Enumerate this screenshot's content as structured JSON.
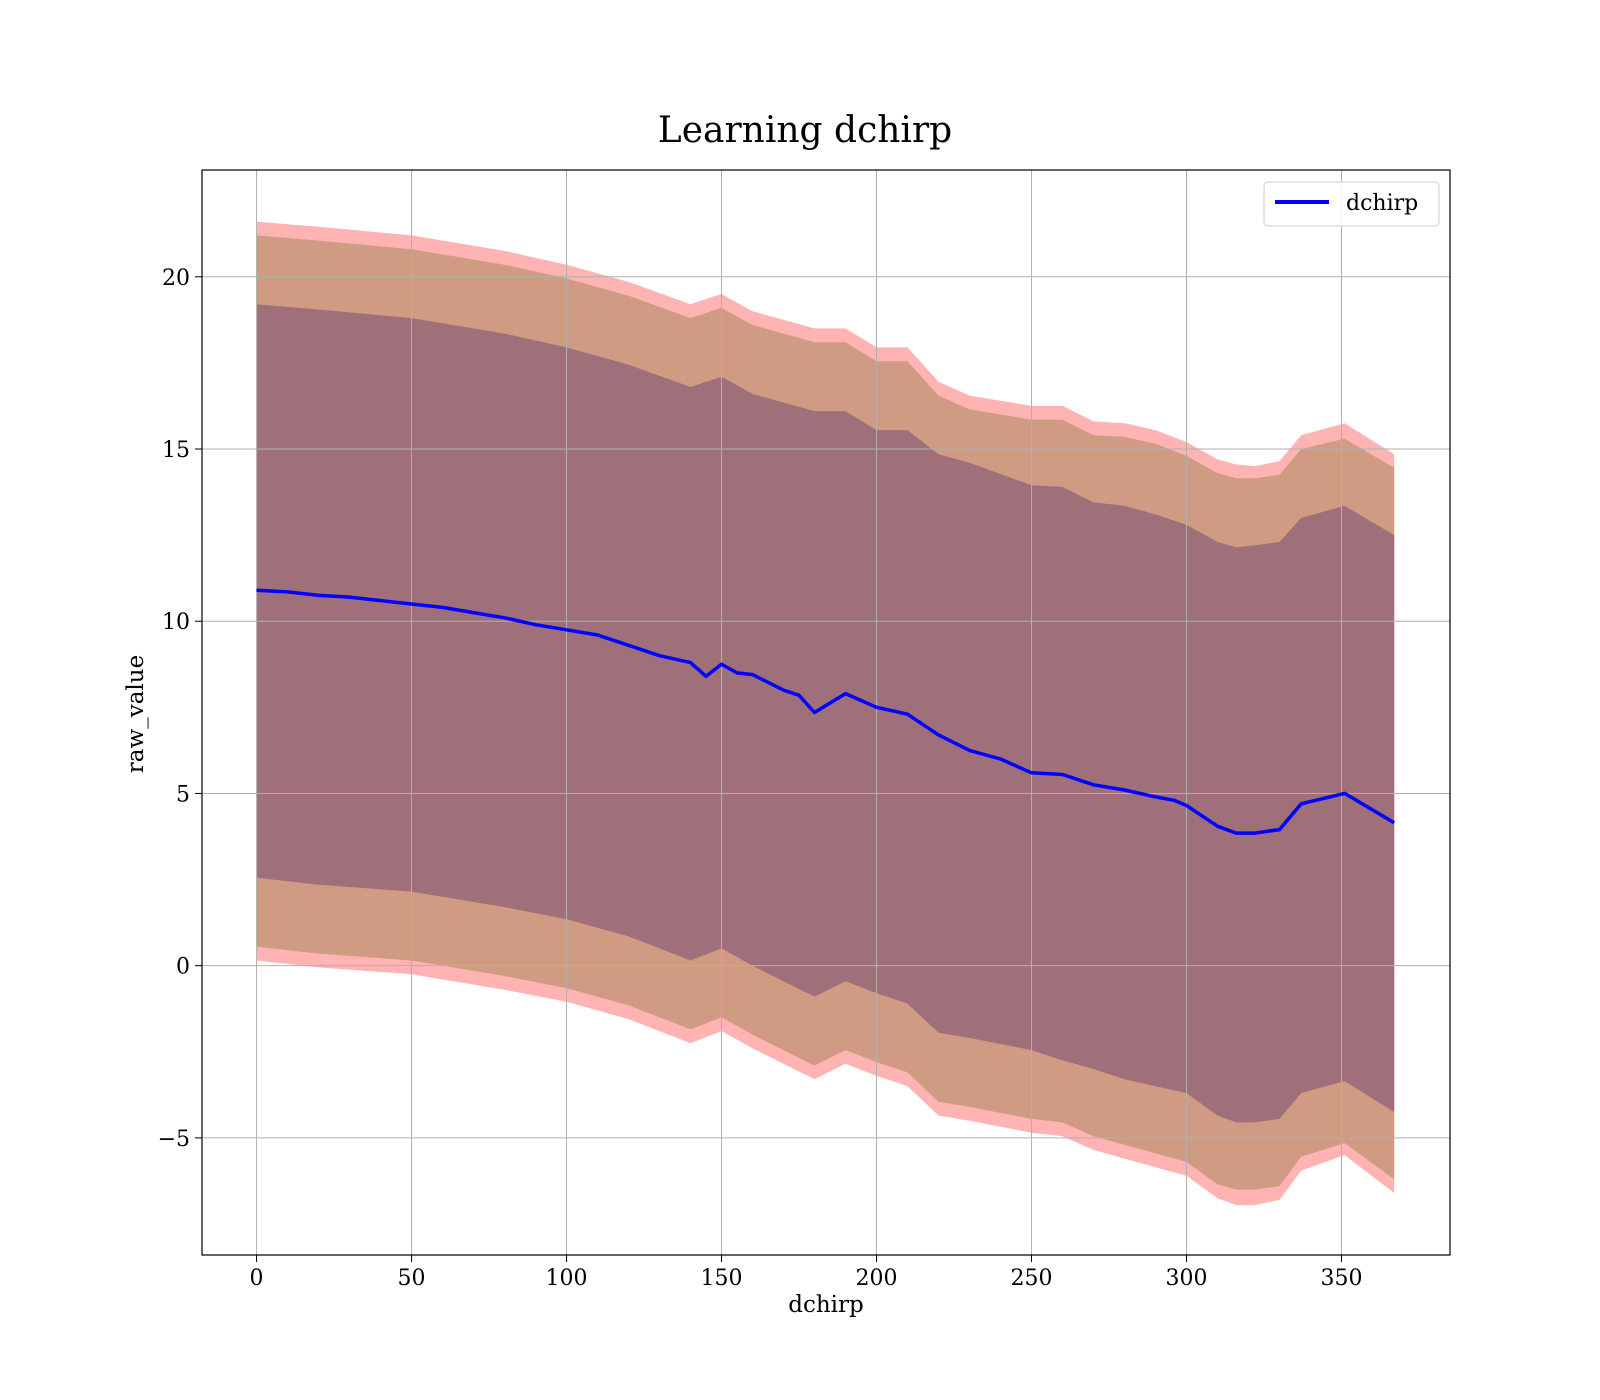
{
  "chart_data": {
    "type": "line",
    "title": "Learning dchirp",
    "xlabel": "dchirp",
    "ylabel": "raw_value",
    "xlim": [
      -17.6,
      385
    ],
    "ylim": [
      -8.4,
      23.1
    ],
    "x_ticks": [
      0,
      50,
      100,
      150,
      200,
      250,
      300,
      350
    ],
    "y_ticks": [
      -5,
      0,
      5,
      10,
      15,
      20
    ],
    "x_tick_labels": [
      "0",
      "50",
      "100",
      "150",
      "200",
      "250",
      "300",
      "350"
    ],
    "y_tick_labels": [
      "−5",
      "0",
      "5",
      "10",
      "15",
      "20"
    ],
    "grid": true,
    "legend": {
      "position": "top-right",
      "entries": [
        {
          "label": "dchirp",
          "color": "#0000ff"
        }
      ]
    },
    "series": [
      {
        "name": "dchirp",
        "color": "#0000ff",
        "points": [
          [
            0,
            10.9
          ],
          [
            10,
            10.85
          ],
          [
            20,
            10.75
          ],
          [
            30,
            10.7
          ],
          [
            40,
            10.6
          ],
          [
            50,
            10.5
          ],
          [
            60,
            10.4
          ],
          [
            70,
            10.25
          ],
          [
            80,
            10.1
          ],
          [
            90,
            9.9
          ],
          [
            100,
            9.75
          ],
          [
            110,
            9.6
          ],
          [
            120,
            9.3
          ],
          [
            130,
            9.0
          ],
          [
            140,
            8.8
          ],
          [
            145,
            8.4
          ],
          [
            150,
            8.75
          ],
          [
            155,
            8.5
          ],
          [
            160,
            8.45
          ],
          [
            170,
            8.0
          ],
          [
            175,
            7.85
          ],
          [
            180,
            7.35
          ],
          [
            190,
            7.9
          ],
          [
            200,
            7.5
          ],
          [
            210,
            7.3
          ],
          [
            220,
            6.7
          ],
          [
            230,
            6.25
          ],
          [
            240,
            6.0
          ],
          [
            250,
            5.6
          ],
          [
            260,
            5.55
          ],
          [
            270,
            5.25
          ],
          [
            280,
            5.1
          ],
          [
            290,
            4.9
          ],
          [
            296,
            4.8
          ],
          [
            300,
            4.65
          ],
          [
            310,
            4.05
          ],
          [
            316,
            3.85
          ],
          [
            322,
            3.85
          ],
          [
            330,
            3.95
          ],
          [
            337,
            4.7
          ],
          [
            351,
            5.0
          ],
          [
            367,
            4.15
          ]
        ]
      }
    ],
    "bands": [
      {
        "name": "outer",
        "color": "#ff9999",
        "opacity": 0.75,
        "upper": [
          [
            0,
            21.6
          ],
          [
            20,
            21.45
          ],
          [
            50,
            21.2
          ],
          [
            80,
            20.75
          ],
          [
            100,
            20.35
          ],
          [
            120,
            19.85
          ],
          [
            140,
            19.2
          ],
          [
            150,
            19.5
          ],
          [
            160,
            19.0
          ],
          [
            180,
            18.5
          ],
          [
            190,
            18.5
          ],
          [
            200,
            17.95
          ],
          [
            210,
            17.95
          ],
          [
            220,
            16.95
          ],
          [
            230,
            16.55
          ],
          [
            250,
            16.25
          ],
          [
            260,
            16.25
          ],
          [
            270,
            15.8
          ],
          [
            280,
            15.75
          ],
          [
            290,
            15.55
          ],
          [
            300,
            15.2
          ],
          [
            310,
            14.7
          ],
          [
            316,
            14.55
          ],
          [
            322,
            14.5
          ],
          [
            330,
            14.65
          ],
          [
            337,
            15.4
          ],
          [
            351,
            15.75
          ],
          [
            367,
            14.85
          ]
        ],
        "lower": [
          [
            0,
            0.15
          ],
          [
            20,
            -0.05
          ],
          [
            50,
            -0.25
          ],
          [
            80,
            -0.7
          ],
          [
            100,
            -1.05
          ],
          [
            120,
            -1.55
          ],
          [
            140,
            -2.25
          ],
          [
            150,
            -1.9
          ],
          [
            160,
            -2.4
          ],
          [
            180,
            -3.3
          ],
          [
            190,
            -2.85
          ],
          [
            200,
            -3.2
          ],
          [
            210,
            -3.5
          ],
          [
            220,
            -4.35
          ],
          [
            230,
            -4.5
          ],
          [
            250,
            -4.85
          ],
          [
            260,
            -4.95
          ],
          [
            270,
            -5.35
          ],
          [
            280,
            -5.6
          ],
          [
            290,
            -5.85
          ],
          [
            300,
            -6.1
          ],
          [
            310,
            -6.75
          ],
          [
            316,
            -6.95
          ],
          [
            322,
            -6.95
          ],
          [
            330,
            -6.8
          ],
          [
            337,
            -5.95
          ],
          [
            351,
            -5.5
          ],
          [
            367,
            -6.6
          ]
        ]
      },
      {
        "name": "middle",
        "color": "#c8967a",
        "opacity": 0.85,
        "upper": [
          [
            0,
            21.2
          ],
          [
            20,
            21.05
          ],
          [
            50,
            20.8
          ],
          [
            80,
            20.35
          ],
          [
            100,
            19.95
          ],
          [
            120,
            19.45
          ],
          [
            140,
            18.8
          ],
          [
            150,
            19.1
          ],
          [
            160,
            18.6
          ],
          [
            180,
            18.1
          ],
          [
            190,
            18.1
          ],
          [
            200,
            17.55
          ],
          [
            210,
            17.55
          ],
          [
            220,
            16.55
          ],
          [
            230,
            16.15
          ],
          [
            250,
            15.85
          ],
          [
            260,
            15.85
          ],
          [
            270,
            15.4
          ],
          [
            280,
            15.35
          ],
          [
            290,
            15.15
          ],
          [
            300,
            14.8
          ],
          [
            310,
            14.3
          ],
          [
            316,
            14.15
          ],
          [
            322,
            14.15
          ],
          [
            330,
            14.25
          ],
          [
            337,
            15.0
          ],
          [
            351,
            15.3
          ],
          [
            367,
            14.45
          ]
        ],
        "lower": [
          [
            0,
            0.55
          ],
          [
            20,
            0.35
          ],
          [
            50,
            0.15
          ],
          [
            80,
            -0.3
          ],
          [
            100,
            -0.65
          ],
          [
            120,
            -1.15
          ],
          [
            140,
            -1.85
          ],
          [
            150,
            -1.5
          ],
          [
            160,
            -2.0
          ],
          [
            180,
            -2.9
          ],
          [
            190,
            -2.45
          ],
          [
            200,
            -2.8
          ],
          [
            210,
            -3.1
          ],
          [
            220,
            -3.95
          ],
          [
            230,
            -4.1
          ],
          [
            250,
            -4.45
          ],
          [
            260,
            -4.55
          ],
          [
            270,
            -4.95
          ],
          [
            280,
            -5.2
          ],
          [
            290,
            -5.45
          ],
          [
            300,
            -5.7
          ],
          [
            310,
            -6.35
          ],
          [
            316,
            -6.5
          ],
          [
            322,
            -6.5
          ],
          [
            330,
            -6.4
          ],
          [
            337,
            -5.55
          ],
          [
            351,
            -5.15
          ],
          [
            367,
            -6.2
          ]
        ]
      },
      {
        "name": "inner",
        "color": "#a0707a",
        "opacity": 1.0,
        "upper": [
          [
            0,
            19.2
          ],
          [
            20,
            19.05
          ],
          [
            50,
            18.8
          ],
          [
            80,
            18.35
          ],
          [
            100,
            17.95
          ],
          [
            120,
            17.45
          ],
          [
            140,
            16.8
          ],
          [
            150,
            17.1
          ],
          [
            160,
            16.6
          ],
          [
            180,
            16.1
          ],
          [
            190,
            16.1
          ],
          [
            200,
            15.55
          ],
          [
            210,
            15.55
          ],
          [
            220,
            14.85
          ],
          [
            230,
            14.6
          ],
          [
            250,
            13.95
          ],
          [
            260,
            13.9
          ],
          [
            270,
            13.45
          ],
          [
            280,
            13.35
          ],
          [
            290,
            13.1
          ],
          [
            300,
            12.8
          ],
          [
            310,
            12.3
          ],
          [
            316,
            12.15
          ],
          [
            322,
            12.2
          ],
          [
            330,
            12.3
          ],
          [
            337,
            13.0
          ],
          [
            351,
            13.35
          ],
          [
            367,
            12.5
          ]
        ],
        "lower": [
          [
            0,
            2.55
          ],
          [
            20,
            2.35
          ],
          [
            50,
            2.15
          ],
          [
            80,
            1.7
          ],
          [
            100,
            1.35
          ],
          [
            120,
            0.85
          ],
          [
            140,
            0.15
          ],
          [
            150,
            0.5
          ],
          [
            160,
            0.0
          ],
          [
            180,
            -0.9
          ],
          [
            190,
            -0.45
          ],
          [
            200,
            -0.8
          ],
          [
            210,
            -1.1
          ],
          [
            220,
            -1.95
          ],
          [
            230,
            -2.1
          ],
          [
            250,
            -2.45
          ],
          [
            260,
            -2.75
          ],
          [
            270,
            -3.0
          ],
          [
            280,
            -3.3
          ],
          [
            290,
            -3.5
          ],
          [
            300,
            -3.7
          ],
          [
            310,
            -4.35
          ],
          [
            316,
            -4.55
          ],
          [
            322,
            -4.55
          ],
          [
            330,
            -4.45
          ],
          [
            337,
            -3.7
          ],
          [
            351,
            -3.35
          ],
          [
            367,
            -4.25
          ]
        ]
      }
    ]
  }
}
